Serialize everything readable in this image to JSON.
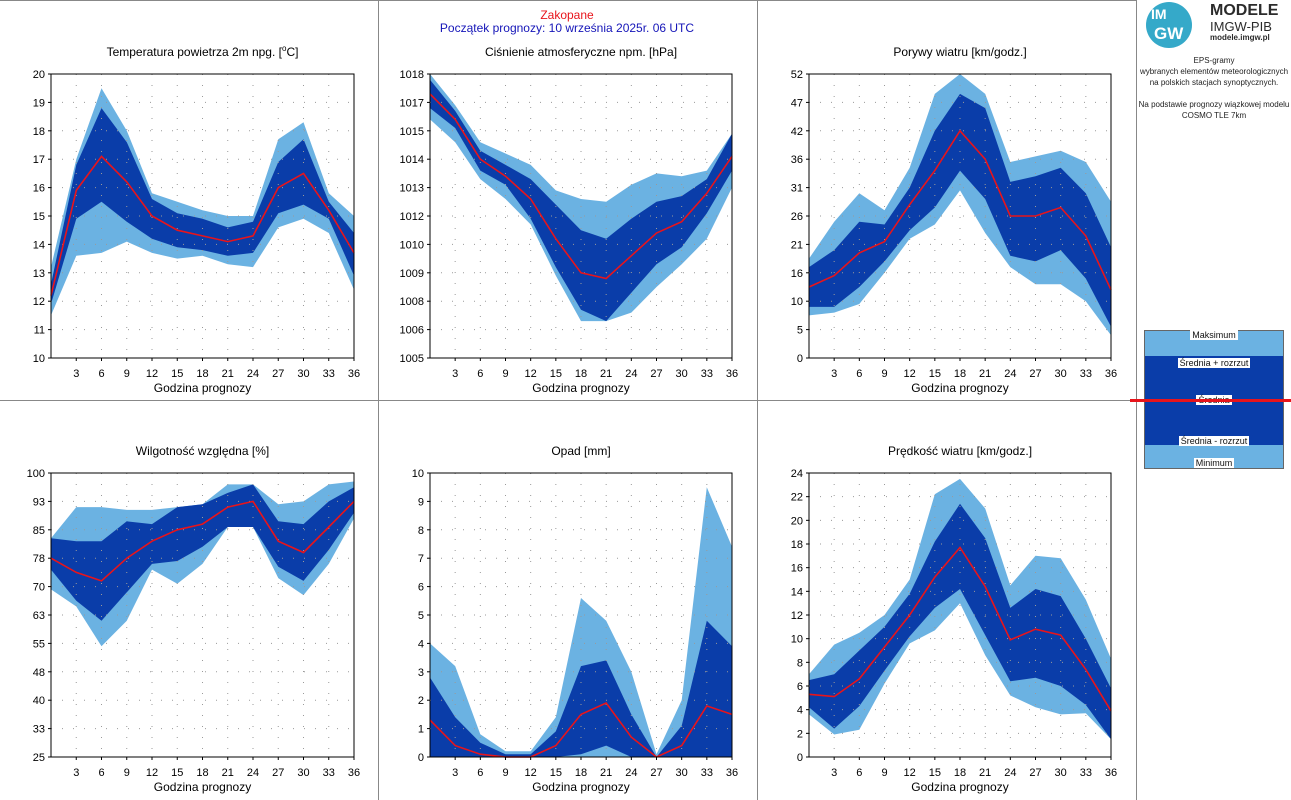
{
  "header": {
    "station": "Zakopane",
    "forecast_start": "Początek prognozy: 10 września 2025r. 06 UTC"
  },
  "logo": {
    "mark_top": "IM",
    "mark_bottom": "GW",
    "line1": "MODELE",
    "line2": "IMGW-PIB",
    "line3": "modele.imgw.pl"
  },
  "description": [
    "EPS-gramy",
    "wybranych elementów meteorologicznych",
    "na polskich stacjach  synoptycznych.",
    "",
    "Na podstawie prognozy wiązkowej modelu",
    "COSMO TLE 7km"
  ],
  "legend": {
    "max": "Maksimum",
    "mean_plus": "Średnia + rozrzut",
    "mean": "Średnia",
    "mean_minus": "Średnia - rozrzut",
    "min": "Minimum"
  },
  "colors": {
    "light_band": "#6bb2e2",
    "dark_band": "#0a3da9",
    "mean_line": "#e8141b",
    "grid_dots": "#9a9a9a"
  },
  "chart_data": [
    {
      "type": "area",
      "title": "Temperatura powietrza 2m npg. [°C]",
      "xlabel": "Godzina prognozy",
      "x": [
        0,
        3,
        6,
        9,
        12,
        15,
        18,
        21,
        24,
        27,
        30,
        33,
        36
      ],
      "xticks": [
        3,
        6,
        9,
        12,
        15,
        18,
        21,
        24,
        27,
        30,
        33,
        36
      ],
      "ylim": [
        10,
        20
      ],
      "yticks": [
        10,
        11,
        12,
        13,
        14,
        15,
        16,
        17,
        18,
        19,
        20
      ],
      "ytick_labels": [
        "10",
        "11",
        "12",
        "13",
        "14",
        "15",
        "16",
        "17",
        "18",
        "19",
        "20"
      ],
      "series": [
        {
          "role": "max",
          "values": [
            13.2,
            17.0,
            19.5,
            18.0,
            15.8,
            15.5,
            15.2,
            15.0,
            15.0,
            17.7,
            18.3,
            15.8,
            15.0
          ]
        },
        {
          "role": "mean_plus",
          "values": [
            12.6,
            16.8,
            18.8,
            17.6,
            15.6,
            15.1,
            14.9,
            14.6,
            14.8,
            16.9,
            17.7,
            15.5,
            14.4
          ]
        },
        {
          "role": "mean",
          "values": [
            12.2,
            15.9,
            17.1,
            16.2,
            15.0,
            14.5,
            14.3,
            14.1,
            14.3,
            16.0,
            16.5,
            15.2,
            13.7
          ]
        },
        {
          "role": "mean_minus",
          "values": [
            11.9,
            14.9,
            15.5,
            14.8,
            14.2,
            13.9,
            13.8,
            13.6,
            13.7,
            15.1,
            15.4,
            14.9,
            12.9
          ]
        },
        {
          "role": "min",
          "values": [
            11.5,
            13.6,
            13.7,
            14.1,
            13.7,
            13.5,
            13.6,
            13.3,
            13.2,
            14.6,
            14.9,
            14.4,
            12.4
          ]
        }
      ]
    },
    {
      "type": "area",
      "title": "Ciśnienie atmosferyczne npm. [hPa]",
      "xlabel": "Godzina prognozy",
      "x": [
        0,
        3,
        6,
        9,
        12,
        15,
        18,
        21,
        24,
        27,
        30,
        33,
        36
      ],
      "xticks": [
        3,
        6,
        9,
        12,
        15,
        18,
        21,
        24,
        27,
        30,
        33,
        36
      ],
      "ylim": [
        0,
        10
      ],
      "yticks": [
        0,
        1,
        2,
        3,
        4,
        5,
        6,
        7,
        8,
        9,
        10
      ],
      "ytick_labels": [
        "1005",
        "1006",
        "1008",
        "1009",
        "1010",
        "1012",
        "1013",
        "1014",
        "1015",
        "1017",
        "1018"
      ],
      "series": [
        {
          "role": "max",
          "values": [
            10.0,
            8.9,
            7.6,
            7.2,
            6.8,
            5.9,
            5.6,
            5.5,
            6.1,
            6.5,
            6.4,
            6.6,
            7.9
          ]
        },
        {
          "role": "mean_plus",
          "values": [
            9.8,
            8.7,
            7.3,
            6.8,
            6.3,
            5.4,
            4.5,
            4.2,
            4.9,
            5.5,
            5.7,
            6.3,
            7.9
          ]
        },
        {
          "role": "mean",
          "values": [
            9.3,
            8.4,
            7.0,
            6.4,
            5.6,
            4.2,
            3.0,
            2.8,
            3.6,
            4.4,
            4.8,
            5.8,
            7.1
          ]
        },
        {
          "role": "mean_minus",
          "values": [
            8.8,
            8.1,
            6.6,
            6.1,
            4.9,
            3.2,
            1.7,
            1.3,
            2.3,
            3.3,
            3.9,
            5.1,
            6.6
          ]
        },
        {
          "role": "min",
          "values": [
            8.4,
            7.6,
            6.3,
            5.6,
            4.7,
            2.9,
            1.3,
            1.3,
            1.6,
            2.5,
            3.3,
            4.2,
            6.0
          ]
        }
      ]
    },
    {
      "type": "area",
      "title": "Porywy wiatru [km/godz.]",
      "xlabel": "Godzina prognozy",
      "x": [
        0,
        3,
        6,
        9,
        12,
        15,
        18,
        21,
        24,
        27,
        30,
        33,
        36
      ],
      "xticks": [
        3,
        6,
        9,
        12,
        15,
        18,
        21,
        24,
        27,
        30,
        33,
        36
      ],
      "ylim": [
        0,
        10
      ],
      "yticks": [
        0,
        1,
        2,
        3,
        4,
        5,
        6,
        7,
        8,
        9,
        10
      ],
      "ytick_labels": [
        "0",
        "5",
        "10",
        "16",
        "21",
        "26",
        "31",
        "36",
        "42",
        "47",
        "52"
      ],
      "series": [
        {
          "role": "max",
          "values": [
            3.5,
            4.8,
            5.8,
            5.2,
            6.7,
            9.3,
            10.0,
            9.3,
            6.9,
            7.1,
            7.3,
            6.9,
            5.5
          ]
        },
        {
          "role": "mean_plus",
          "values": [
            3.2,
            3.8,
            4.8,
            4.7,
            6.0,
            8.0,
            9.3,
            8.8,
            6.2,
            6.4,
            6.7,
            5.8,
            3.9
          ]
        },
        {
          "role": "mean",
          "values": [
            2.5,
            2.9,
            3.7,
            4.1,
            5.4,
            6.6,
            8.0,
            7.0,
            5.0,
            5.0,
            5.3,
            4.3,
            2.4
          ]
        },
        {
          "role": "mean_minus",
          "values": [
            1.8,
            1.8,
            2.5,
            3.4,
            4.5,
            5.3,
            6.6,
            5.6,
            3.6,
            3.4,
            3.8,
            2.8,
            1.1
          ]
        },
        {
          "role": "min",
          "values": [
            1.5,
            1.6,
            1.9,
            3.0,
            4.2,
            4.7,
            5.9,
            4.4,
            3.2,
            2.6,
            2.6,
            2.0,
            0.8
          ]
        }
      ]
    },
    {
      "type": "area",
      "title": "Wilgotność względna [%]",
      "xlabel": "Godzina prognozy",
      "x": [
        0,
        3,
        6,
        9,
        12,
        15,
        18,
        21,
        24,
        27,
        30,
        33,
        36
      ],
      "xticks": [
        3,
        6,
        9,
        12,
        15,
        18,
        21,
        24,
        27,
        30,
        33,
        36
      ],
      "ylim": [
        0,
        10
      ],
      "yticks": [
        0,
        1,
        2,
        3,
        4,
        5,
        6,
        7,
        8,
        9,
        10
      ],
      "ytick_labels": [
        "25",
        "33",
        "40",
        "48",
        "55",
        "63",
        "70",
        "78",
        "85",
        "93",
        "100"
      ],
      "series": [
        {
          "role": "max",
          "values": [
            7.7,
            8.8,
            8.8,
            8.7,
            8.7,
            8.8,
            8.9,
            9.6,
            9.6,
            8.9,
            9.0,
            9.6,
            9.7
          ]
        },
        {
          "role": "mean_plus",
          "values": [
            7.7,
            7.6,
            7.6,
            8.3,
            8.2,
            8.8,
            8.9,
            9.3,
            9.6,
            8.3,
            8.2,
            9.0,
            9.5
          ]
        },
        {
          "role": "mean",
          "values": [
            7.0,
            6.5,
            6.2,
            7.0,
            7.6,
            8.0,
            8.2,
            8.8,
            9.0,
            7.6,
            7.2,
            8.1,
            9.0
          ]
        },
        {
          "role": "mean_minus",
          "values": [
            6.6,
            5.5,
            4.8,
            5.8,
            6.8,
            6.9,
            7.4,
            8.1,
            8.1,
            6.7,
            6.2,
            7.3,
            8.6
          ]
        },
        {
          "role": "min",
          "values": [
            5.9,
            5.3,
            3.9,
            4.8,
            6.6,
            6.1,
            6.8,
            8.1,
            8.1,
            6.3,
            5.7,
            6.8,
            8.4
          ]
        }
      ]
    },
    {
      "type": "area",
      "title": "Opad [mm]",
      "xlabel": "Godzina prognozy",
      "x": [
        0,
        3,
        6,
        9,
        12,
        15,
        18,
        21,
        24,
        27,
        30,
        33,
        36
      ],
      "xticks": [
        3,
        6,
        9,
        12,
        15,
        18,
        21,
        24,
        27,
        30,
        33,
        36
      ],
      "ylim": [
        0,
        10
      ],
      "yticks": [
        0,
        1,
        2,
        3,
        4,
        5,
        6,
        7,
        8,
        9,
        10
      ],
      "ytick_labels": [
        "0",
        "1",
        "2",
        "3",
        "4",
        "5",
        "6",
        "7",
        "8",
        "9",
        "10"
      ],
      "series": [
        {
          "role": "max",
          "values": [
            4.0,
            3.2,
            0.8,
            0.2,
            0.2,
            1.4,
            5.6,
            4.8,
            3.0,
            0.1,
            2.0,
            9.5,
            7.4
          ]
        },
        {
          "role": "mean_plus",
          "values": [
            2.8,
            1.4,
            0.5,
            0.1,
            0.1,
            0.9,
            3.2,
            3.4,
            1.5,
            0.0,
            1.1,
            4.8,
            3.9
          ]
        },
        {
          "role": "mean",
          "values": [
            1.3,
            0.4,
            0.1,
            0.0,
            0.0,
            0.4,
            1.5,
            1.9,
            0.7,
            0.0,
            0.4,
            1.8,
            1.5
          ]
        },
        {
          "role": "mean_minus",
          "values": [
            0.0,
            0.0,
            0.0,
            0.0,
            0.0,
            0.0,
            0.1,
            0.4,
            0.0,
            0.0,
            0.0,
            0.0,
            0.0
          ]
        },
        {
          "role": "min",
          "values": [
            0.0,
            0.0,
            0.0,
            0.0,
            0.0,
            0.0,
            0.0,
            0.0,
            0.0,
            0.0,
            0.0,
            0.0,
            0.0
          ]
        }
      ]
    },
    {
      "type": "area",
      "title": "Prędkość wiatru [km/godz.]",
      "xlabel": "Godzina prognozy",
      "x": [
        0,
        3,
        6,
        9,
        12,
        15,
        18,
        21,
        24,
        27,
        30,
        33,
        36
      ],
      "xticks": [
        3,
        6,
        9,
        12,
        15,
        18,
        21,
        24,
        27,
        30,
        33,
        36
      ],
      "ylim": [
        0,
        24
      ],
      "yticks": [
        0,
        2,
        4,
        6,
        8,
        10,
        12,
        14,
        16,
        18,
        20,
        22,
        24
      ],
      "ytick_labels": [
        "0",
        "2",
        "4",
        "6",
        "8",
        "10",
        "12",
        "14",
        "16",
        "18",
        "20",
        "22",
        "24"
      ],
      "series": [
        {
          "role": "max",
          "values": [
            7.0,
            9.5,
            10.5,
            12.0,
            15.0,
            22.2,
            23.5,
            21.0,
            14.5,
            17.0,
            16.8,
            13.3,
            8.3
          ]
        },
        {
          "role": "mean_plus",
          "values": [
            6.5,
            7.0,
            9.0,
            11.0,
            13.8,
            18.2,
            21.4,
            18.5,
            12.6,
            14.2,
            13.6,
            10.0,
            5.8
          ]
        },
        {
          "role": "mean",
          "values": [
            5.3,
            5.1,
            6.6,
            9.3,
            12.0,
            15.2,
            17.7,
            14.4,
            9.9,
            10.8,
            10.3,
            7.4,
            3.9
          ]
        },
        {
          "role": "mean_minus",
          "values": [
            4.2,
            2.4,
            4.3,
            7.3,
            10.2,
            12.6,
            14.2,
            10.3,
            6.4,
            6.7,
            6.0,
            4.4,
            1.5
          ]
        },
        {
          "role": "min",
          "values": [
            3.6,
            1.9,
            2.3,
            6.2,
            9.6,
            10.7,
            13.0,
            8.6,
            5.2,
            4.2,
            3.6,
            3.7,
            1.5
          ]
        }
      ]
    }
  ]
}
